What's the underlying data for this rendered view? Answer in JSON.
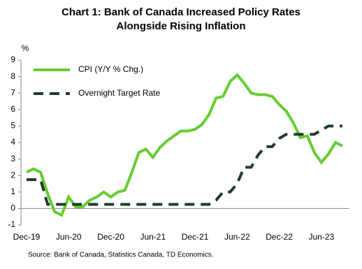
{
  "chart_data": {
    "type": "line",
    "title": "Chart 1: Bank of Canada Increased Policy Rates",
    "subtitle": "Alongside Rising Inflation",
    "y_label": "%",
    "source": "Source: Bank of Canada, Statistics Canada, TD Economics.",
    "categories": [
      "Dec-19",
      null,
      null,
      null,
      null,
      null,
      "Jun-20",
      null,
      null,
      null,
      null,
      null,
      "Dec-20",
      null,
      null,
      null,
      null,
      null,
      "Jun-21",
      null,
      null,
      null,
      null,
      null,
      "Dec-21",
      null,
      null,
      null,
      null,
      null,
      "Jun-22",
      null,
      null,
      null,
      null,
      null,
      "Dec-22",
      null,
      null,
      null,
      null,
      null,
      "Jun-23",
      null,
      null,
      null
    ],
    "series": [
      {
        "name": "CPI (Y/Y % Chg.)",
        "color": "#66cc33",
        "dash": false,
        "values": [
          2.2,
          2.4,
          2.2,
          0.9,
          -0.2,
          -0.4,
          0.7,
          0.1,
          0.1,
          0.5,
          0.7,
          1.0,
          0.7,
          1.0,
          1.1,
          2.2,
          3.4,
          3.6,
          3.1,
          3.7,
          4.1,
          4.4,
          4.7,
          4.7,
          4.8,
          5.1,
          5.7,
          6.7,
          6.8,
          7.7,
          8.1,
          7.6,
          7.0,
          6.9,
          6.9,
          6.8,
          6.3,
          5.9,
          5.2,
          4.3,
          4.4,
          3.4,
          2.8,
          3.3,
          4.0,
          3.8
        ]
      },
      {
        "name": "Overnight Target Rate",
        "color": "#1f3d2b",
        "dash": true,
        "values": [
          1.75,
          1.75,
          1.75,
          0.25,
          0.25,
          0.25,
          0.25,
          0.25,
          0.25,
          0.25,
          0.25,
          0.25,
          0.25,
          0.25,
          0.25,
          0.25,
          0.25,
          0.25,
          0.25,
          0.25,
          0.25,
          0.25,
          0.25,
          0.25,
          0.25,
          0.25,
          0.25,
          0.5,
          1.0,
          1.0,
          1.5,
          2.5,
          2.5,
          3.25,
          3.75,
          3.75,
          4.25,
          4.5,
          4.5,
          4.5,
          4.5,
          4.5,
          4.75,
          5.0,
          5.0,
          5.0
        ]
      }
    ],
    "ylim": [
      -1,
      9
    ],
    "yticks": [
      -1,
      0,
      1,
      2,
      3,
      4,
      5,
      6,
      7,
      8,
      9
    ],
    "grid": false,
    "legend": "upper left"
  }
}
